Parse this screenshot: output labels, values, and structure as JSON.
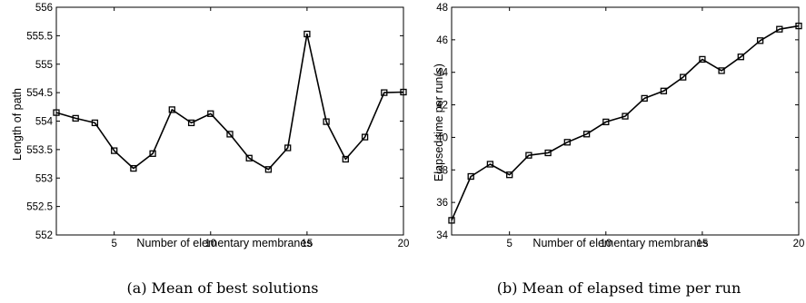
{
  "chart_data": [
    {
      "type": "line",
      "caption": "(a) Mean of best solutions",
      "xlabel": "Number of elementary membranes",
      "ylabel": "Length of path",
      "xlim": [
        2,
        20
      ],
      "ylim": [
        552,
        556
      ],
      "xticks": [
        5,
        10,
        15,
        20
      ],
      "yticks": [
        552,
        552.5,
        553,
        553.5,
        554,
        554.5,
        555,
        555.5,
        556
      ],
      "grid": false,
      "marker": "square",
      "x": [
        2,
        3,
        4,
        5,
        6,
        7,
        8,
        9,
        10,
        11,
        12,
        13,
        14,
        15,
        16,
        17,
        18,
        19,
        20
      ],
      "y": [
        554.15,
        554.05,
        553.97,
        553.48,
        553.17,
        553.43,
        554.2,
        553.97,
        554.13,
        553.77,
        553.35,
        553.15,
        553.53,
        555.53,
        553.99,
        553.33,
        553.72,
        554.5,
        554.51
      ]
    },
    {
      "type": "line",
      "caption": "(b) Mean of elapsed time per run",
      "xlabel": "Number of elementary membranes",
      "ylabel": "Elapsed time per run(s)",
      "xlim": [
        2,
        20
      ],
      "ylim": [
        34,
        48
      ],
      "xticks": [
        5,
        10,
        15,
        20
      ],
      "yticks": [
        34,
        36,
        38,
        40,
        42,
        44,
        46,
        48
      ],
      "grid": false,
      "marker": "square",
      "x": [
        2,
        3,
        4,
        5,
        6,
        7,
        8,
        9,
        10,
        11,
        12,
        13,
        14,
        15,
        16,
        17,
        18,
        19,
        20
      ],
      "y": [
        34.9,
        37.6,
        38.35,
        37.7,
        38.9,
        39.05,
        39.7,
        40.2,
        40.95,
        41.3,
        42.4,
        42.85,
        43.7,
        44.8,
        44.1,
        44.95,
        45.95,
        46.65,
        46.85
      ]
    }
  ]
}
